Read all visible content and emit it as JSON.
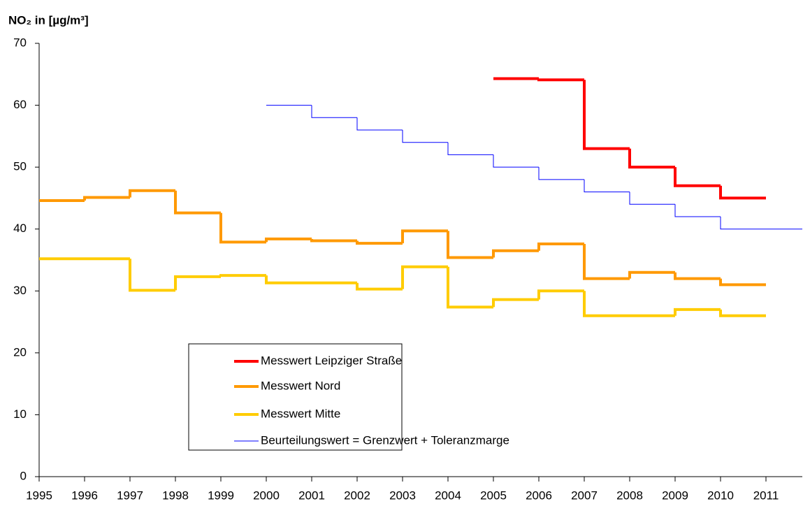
{
  "chart_data": {
    "type": "step",
    "title": "NO₂ in [µg/m³]",
    "x": [
      1995,
      1996,
      1997,
      1998,
      1999,
      2000,
      2001,
      2002,
      2003,
      2004,
      2005,
      2006,
      2007,
      2008,
      2009,
      2010,
      2011
    ],
    "xlim": [
      1995,
      2011.8
    ],
    "xticks": [
      1995,
      1996,
      1997,
      1998,
      1999,
      2000,
      2001,
      2002,
      2003,
      2004,
      2005,
      2006,
      2007,
      2008,
      2009,
      2010,
      2011
    ],
    "ylim": [
      0,
      70
    ],
    "yticks": [
      0,
      10,
      20,
      30,
      40,
      50,
      60,
      70
    ],
    "grid": false,
    "series": [
      {
        "name": "Messwert Leipziger Straße",
        "color": "#ff0000",
        "width": 4,
        "values": [
          null,
          null,
          null,
          null,
          null,
          null,
          null,
          null,
          null,
          null,
          64.3,
          64.1,
          53,
          50,
          47,
          45,
          null
        ]
      },
      {
        "name": "Messwert Nord",
        "color": "#ff9900",
        "width": 4,
        "values": [
          44.6,
          45.1,
          46.2,
          42.6,
          37.9,
          38.4,
          38.1,
          37.7,
          39.7,
          35.4,
          36.5,
          37.6,
          32,
          33,
          32,
          31,
          null
        ]
      },
      {
        "name": "Messwert Mitte",
        "color": "#ffcc00",
        "width": 4,
        "values": [
          35.2,
          35.2,
          30.1,
          32.3,
          32.5,
          31.3,
          31.3,
          30.3,
          33.9,
          27.4,
          28.6,
          30.0,
          26,
          26,
          27,
          26,
          null
        ]
      },
      {
        "name": "Beurteilungswert = Grenzwert + Toleranzmarge",
        "color": "#0000ff",
        "width": 1,
        "values": [
          null,
          null,
          null,
          null,
          null,
          60,
          58,
          56,
          54,
          52,
          50,
          48,
          46,
          44,
          42,
          40,
          40
        ]
      }
    ]
  }
}
